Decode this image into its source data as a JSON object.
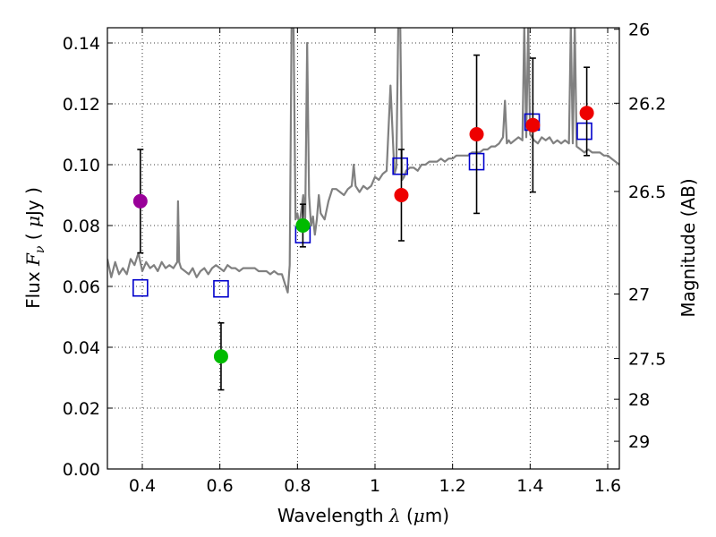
{
  "chart_data": {
    "type": "scatter",
    "title": "",
    "xlabel": "Wavelength λ (μm)",
    "ylabel": "Flux F_ν (μJy)",
    "ylabel_right": "Magnitude (AB)",
    "xlabel_parts": {
      "text": "Wavelength  ",
      "symbol": "λ",
      "open": " (",
      "unit": "μ",
      "unit_rest": "m)"
    },
    "ylabel_parts": {
      "text": "Flux  ",
      "symbol": "F",
      "sub": "ν",
      "open": "  ( ",
      "unit": "μ",
      "unit_rest": "Jy )"
    },
    "xlim": [
      0.31,
      1.63
    ],
    "ylim": [
      0.0,
      0.145
    ],
    "grid": true,
    "x_ticks": [
      0.4,
      0.6,
      0.8,
      1.0,
      1.2,
      1.4,
      1.6
    ],
    "x_tick_labels": [
      "0.4",
      "0.6",
      "0.8",
      "1",
      "1.2",
      "1.4",
      "1.6"
    ],
    "y_ticks": [
      0.0,
      0.02,
      0.04,
      0.06,
      0.08,
      0.1,
      0.12,
      0.14
    ],
    "y_tick_labels": [
      "0.00",
      "0.02",
      "0.04",
      "0.06",
      "0.08",
      "0.10",
      "0.12",
      "0.14"
    ],
    "right_ticks": [
      {
        "label": "26",
        "flux": 0.1445
      },
      {
        "label": "26.2",
        "flux": 0.1202
      },
      {
        "label": "26.5",
        "flux": 0.0912
      },
      {
        "label": "27",
        "flux": 0.0575
      },
      {
        "label": "27.5",
        "flux": 0.0363
      },
      {
        "label": "28",
        "flux": 0.0229
      },
      {
        "label": "29",
        "flux": 0.0091
      }
    ],
    "colors": {
      "spectrum": "#808080",
      "model": "#0000cc",
      "purple": "#990099",
      "green": "#00bb00",
      "red": "#ee0000",
      "errorbar": "#000000",
      "grid": "#000000"
    },
    "series": [
      {
        "name": "observed photometry",
        "points": [
          {
            "x": 0.395,
            "y": 0.088,
            "yerr_low": 0.071,
            "yerr_high": 0.105,
            "color": "purple"
          },
          {
            "x": 0.603,
            "y": 0.037,
            "yerr_low": 0.026,
            "yerr_high": 0.048,
            "color": "green"
          },
          {
            "x": 0.814,
            "y": 0.08,
            "yerr_low": 0.073,
            "yerr_high": 0.087,
            "color": "green"
          },
          {
            "x": 1.068,
            "y": 0.09,
            "yerr_low": 0.075,
            "yerr_high": 0.105,
            "color": "red"
          },
          {
            "x": 1.262,
            "y": 0.11,
            "yerr_low": 0.084,
            "yerr_high": 0.136,
            "color": "red"
          },
          {
            "x": 1.407,
            "y": 0.113,
            "yerr_low": 0.091,
            "yerr_high": 0.135,
            "color": "red"
          },
          {
            "x": 1.546,
            "y": 0.117,
            "yerr_low": 0.103,
            "yerr_high": 0.132,
            "color": "red"
          }
        ]
      },
      {
        "name": "model photometry",
        "points": [
          {
            "x": 0.395,
            "y": 0.0595
          },
          {
            "x": 0.603,
            "y": 0.0592
          },
          {
            "x": 0.814,
            "y": 0.077
          },
          {
            "x": 1.065,
            "y": 0.0995
          },
          {
            "x": 1.262,
            "y": 0.101
          },
          {
            "x": 1.405,
            "y": 0.114
          },
          {
            "x": 1.54,
            "y": 0.111
          }
        ]
      },
      {
        "name": "model spectrum",
        "x": [
          0.31,
          0.32,
          0.33,
          0.34,
          0.35,
          0.36,
          0.37,
          0.38,
          0.39,
          0.4,
          0.41,
          0.42,
          0.43,
          0.44,
          0.45,
          0.46,
          0.47,
          0.48,
          0.49,
          0.492,
          0.495,
          0.5,
          0.51,
          0.52,
          0.53,
          0.54,
          0.55,
          0.56,
          0.57,
          0.58,
          0.59,
          0.6,
          0.61,
          0.62,
          0.63,
          0.64,
          0.65,
          0.66,
          0.67,
          0.68,
          0.69,
          0.7,
          0.71,
          0.72,
          0.73,
          0.74,
          0.75,
          0.76,
          0.77,
          0.775,
          0.78,
          0.785,
          0.79,
          0.795,
          0.8,
          0.805,
          0.81,
          0.815,
          0.82,
          0.825,
          0.83,
          0.835,
          0.84,
          0.845,
          0.85,
          0.855,
          0.86,
          0.87,
          0.88,
          0.89,
          0.9,
          0.91,
          0.92,
          0.93,
          0.94,
          0.945,
          0.95,
          0.96,
          0.97,
          0.98,
          0.99,
          1.0,
          1.01,
          1.02,
          1.03,
          1.04,
          1.05,
          1.055,
          1.06,
          1.065,
          1.07,
          1.075,
          1.08,
          1.09,
          1.1,
          1.11,
          1.12,
          1.13,
          1.14,
          1.15,
          1.16,
          1.17,
          1.18,
          1.19,
          1.2,
          1.21,
          1.22,
          1.23,
          1.24,
          1.25,
          1.26,
          1.27,
          1.28,
          1.29,
          1.3,
          1.31,
          1.32,
          1.33,
          1.335,
          1.34,
          1.345,
          1.35,
          1.36,
          1.37,
          1.38,
          1.385,
          1.39,
          1.395,
          1.4,
          1.41,
          1.42,
          1.43,
          1.44,
          1.45,
          1.46,
          1.47,
          1.48,
          1.49,
          1.5,
          1.505,
          1.51,
          1.515,
          1.52,
          1.53,
          1.54,
          1.55,
          1.56,
          1.57,
          1.58,
          1.59,
          1.6,
          1.61,
          1.62,
          1.63
        ],
        "y": [
          0.069,
          0.063,
          0.068,
          0.064,
          0.066,
          0.064,
          0.069,
          0.067,
          0.071,
          0.065,
          0.068,
          0.066,
          0.067,
          0.065,
          0.068,
          0.066,
          0.067,
          0.066,
          0.068,
          0.088,
          0.068,
          0.066,
          0.065,
          0.064,
          0.066,
          0.063,
          0.065,
          0.066,
          0.064,
          0.066,
          0.067,
          0.066,
          0.065,
          0.067,
          0.066,
          0.066,
          0.065,
          0.066,
          0.066,
          0.066,
          0.066,
          0.065,
          0.065,
          0.065,
          0.064,
          0.065,
          0.064,
          0.064,
          0.06,
          0.058,
          0.067,
          0.146,
          0.145,
          0.082,
          0.084,
          0.08,
          0.085,
          0.09,
          0.082,
          0.14,
          0.09,
          0.08,
          0.083,
          0.077,
          0.082,
          0.09,
          0.084,
          0.082,
          0.088,
          0.092,
          0.092,
          0.091,
          0.09,
          0.092,
          0.093,
          0.1,
          0.093,
          0.091,
          0.093,
          0.092,
          0.093,
          0.096,
          0.095,
          0.097,
          0.098,
          0.126,
          0.097,
          0.099,
          0.146,
          0.146,
          0.095,
          0.096,
          0.098,
          0.099,
          0.099,
          0.098,
          0.1,
          0.1,
          0.101,
          0.101,
          0.101,
          0.102,
          0.101,
          0.102,
          0.102,
          0.103,
          0.103,
          0.103,
          0.103,
          0.104,
          0.104,
          0.104,
          0.105,
          0.105,
          0.106,
          0.106,
          0.107,
          0.109,
          0.121,
          0.107,
          0.108,
          0.107,
          0.108,
          0.109,
          0.108,
          0.146,
          0.109,
          0.146,
          0.11,
          0.108,
          0.107,
          0.109,
          0.108,
          0.109,
          0.107,
          0.108,
          0.107,
          0.108,
          0.107,
          0.146,
          0.107,
          0.146,
          0.106,
          0.105,
          0.104,
          0.105,
          0.104,
          0.104,
          0.104,
          0.103,
          0.103,
          0.102,
          0.101,
          0.1
        ]
      }
    ]
  }
}
